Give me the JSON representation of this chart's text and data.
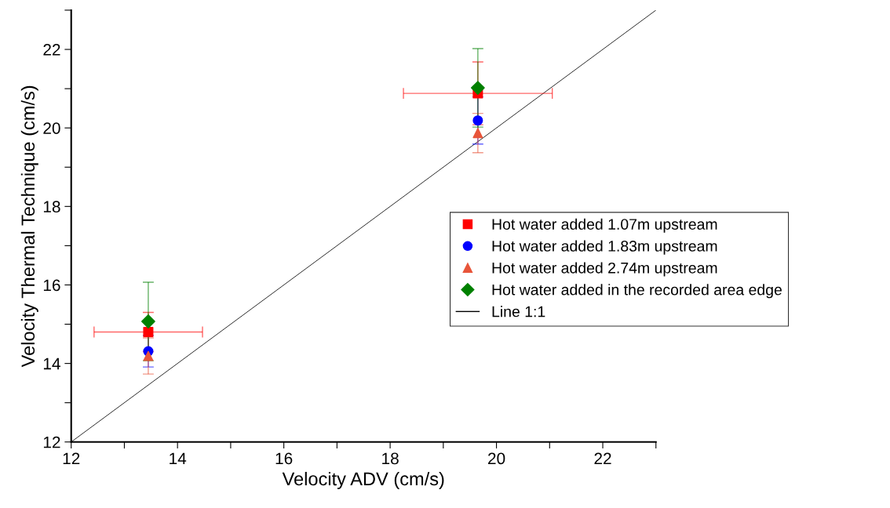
{
  "chart_data": {
    "type": "scatter",
    "xlabel": "Velocity ADV (cm/s)",
    "ylabel": "Velocity Thermal Technique (cm/s)",
    "xlim": [
      12,
      23
    ],
    "ylim": [
      12,
      23
    ],
    "xticks": [
      12,
      {
        "value": 13,
        "label": null
      },
      14,
      {
        "value": 15,
        "label": null
      },
      16,
      {
        "value": 17,
        "label": null
      },
      18,
      {
        "value": 19,
        "label": null
      },
      20,
      {
        "value": 21,
        "label": null
      },
      22,
      {
        "value": 23,
        "label": null
      }
    ],
    "yticks": [
      12,
      {
        "value": 13,
        "label": null
      },
      14,
      {
        "value": 15,
        "label": null
      },
      16,
      {
        "value": 17,
        "label": null
      },
      18,
      {
        "value": 19,
        "label": null
      },
      20,
      {
        "value": 21,
        "label": null
      },
      22,
      {
        "value": 23,
        "label": null
      }
    ],
    "grid": false,
    "legend": "right",
    "series": [
      {
        "name": "Hot water added 1.07m upstream",
        "color": "#ff0000",
        "marker": "square",
        "x": [
          13.45,
          19.65
        ],
        "values": [
          14.8,
          20.88
        ],
        "errors": [
          0.5,
          0.8
        ],
        "xerrors": [
          1.02,
          1.4
        ]
      },
      {
        "name": "Hot water added 1.83m upstream",
        "color": "#0000ff",
        "marker": "circle",
        "x": [
          13.45,
          19.65
        ],
        "values": [
          14.31,
          20.19
        ],
        "errors": [
          0.4,
          0.6
        ]
      },
      {
        "name": "Hot water added 2.74m upstream",
        "color": "#e8553a",
        "marker": "triangle",
        "x": [
          13.45,
          19.65
        ],
        "values": [
          14.19,
          19.87
        ],
        "errors": [
          0.46,
          0.5
        ]
      },
      {
        "name": "Hot water added in the recorded area edge",
        "color": "#008000",
        "marker": "diamond",
        "x": [
          13.45,
          19.65
        ],
        "values": [
          15.07,
          21.02
        ],
        "errors": [
          1.0,
          1.0
        ]
      },
      {
        "name": "Line 1:1",
        "type": "line",
        "color": "#000000",
        "marker": "none",
        "line_style": "solid",
        "x": [
          12,
          23
        ],
        "values": [
          12,
          23
        ]
      }
    ]
  }
}
